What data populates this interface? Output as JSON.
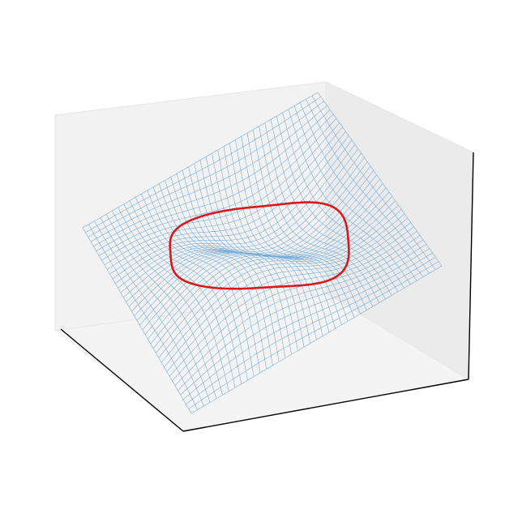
{
  "chart_data": {
    "type": "surface3d",
    "title": "",
    "xlabel": "",
    "ylabel": "",
    "zlabel": "",
    "axis_ticks_visible": false,
    "grid": false,
    "legend": "none",
    "surface": {
      "kind": "wireframe",
      "x_range": [
        -1,
        1
      ],
      "y_range": [
        -1,
        1
      ],
      "grid_lines_per_axis": 40,
      "shape": "saddle-like monkey surface, flat center with raised and lowered corners",
      "color": "#6fa8d6"
    },
    "contour": {
      "kind": "closed level curve at z = 0",
      "shape": "rounded square loop around the flat center",
      "color": "#d7191c"
    }
  }
}
